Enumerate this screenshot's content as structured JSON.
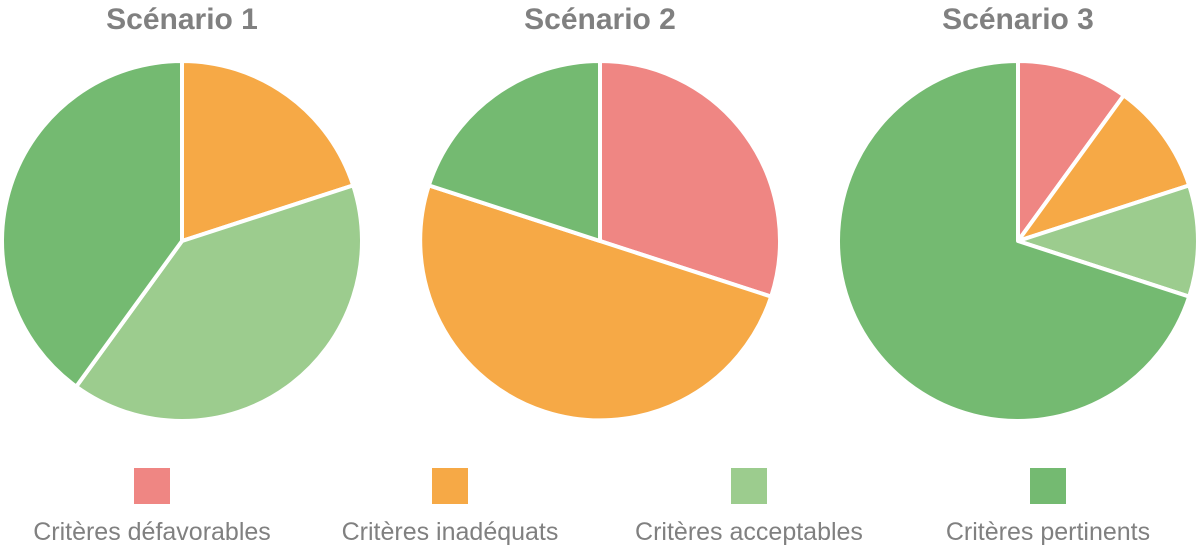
{
  "chart_data": [
    {
      "type": "pie",
      "title": "Scénario 1",
      "slices": [
        {
          "label": "Critères défavorables",
          "value": 0
        },
        {
          "label": "Critères inadéquats",
          "value": 20
        },
        {
          "label": "Critères acceptables",
          "value": 40
        },
        {
          "label": "Critères pertinents",
          "value": 40
        }
      ]
    },
    {
      "type": "pie",
      "title": "Scénario 2",
      "slices": [
        {
          "label": "Critères défavorables",
          "value": 30
        },
        {
          "label": "Critères inadéquats",
          "value": 50
        },
        {
          "label": "Critères acceptables",
          "value": 0
        },
        {
          "label": "Critères pertinents",
          "value": 20
        }
      ]
    },
    {
      "type": "pie",
      "title": "Scénario 3",
      "slices": [
        {
          "label": "Critères défavorables",
          "value": 10
        },
        {
          "label": "Critères inadéquats",
          "value": 10
        },
        {
          "label": "Critères acceptables",
          "value": 10
        },
        {
          "label": "Critères pertinents",
          "value": 70
        }
      ]
    }
  ],
  "legend": [
    {
      "label": "Critères défavorables",
      "color": "#ef8683"
    },
    {
      "label": "Critères inadéquats",
      "color": "#f6a946"
    },
    {
      "label": "Critères acceptables",
      "color": "#9ccc8e"
    },
    {
      "label": "Critères pertinents",
      "color": "#74ba71"
    }
  ]
}
